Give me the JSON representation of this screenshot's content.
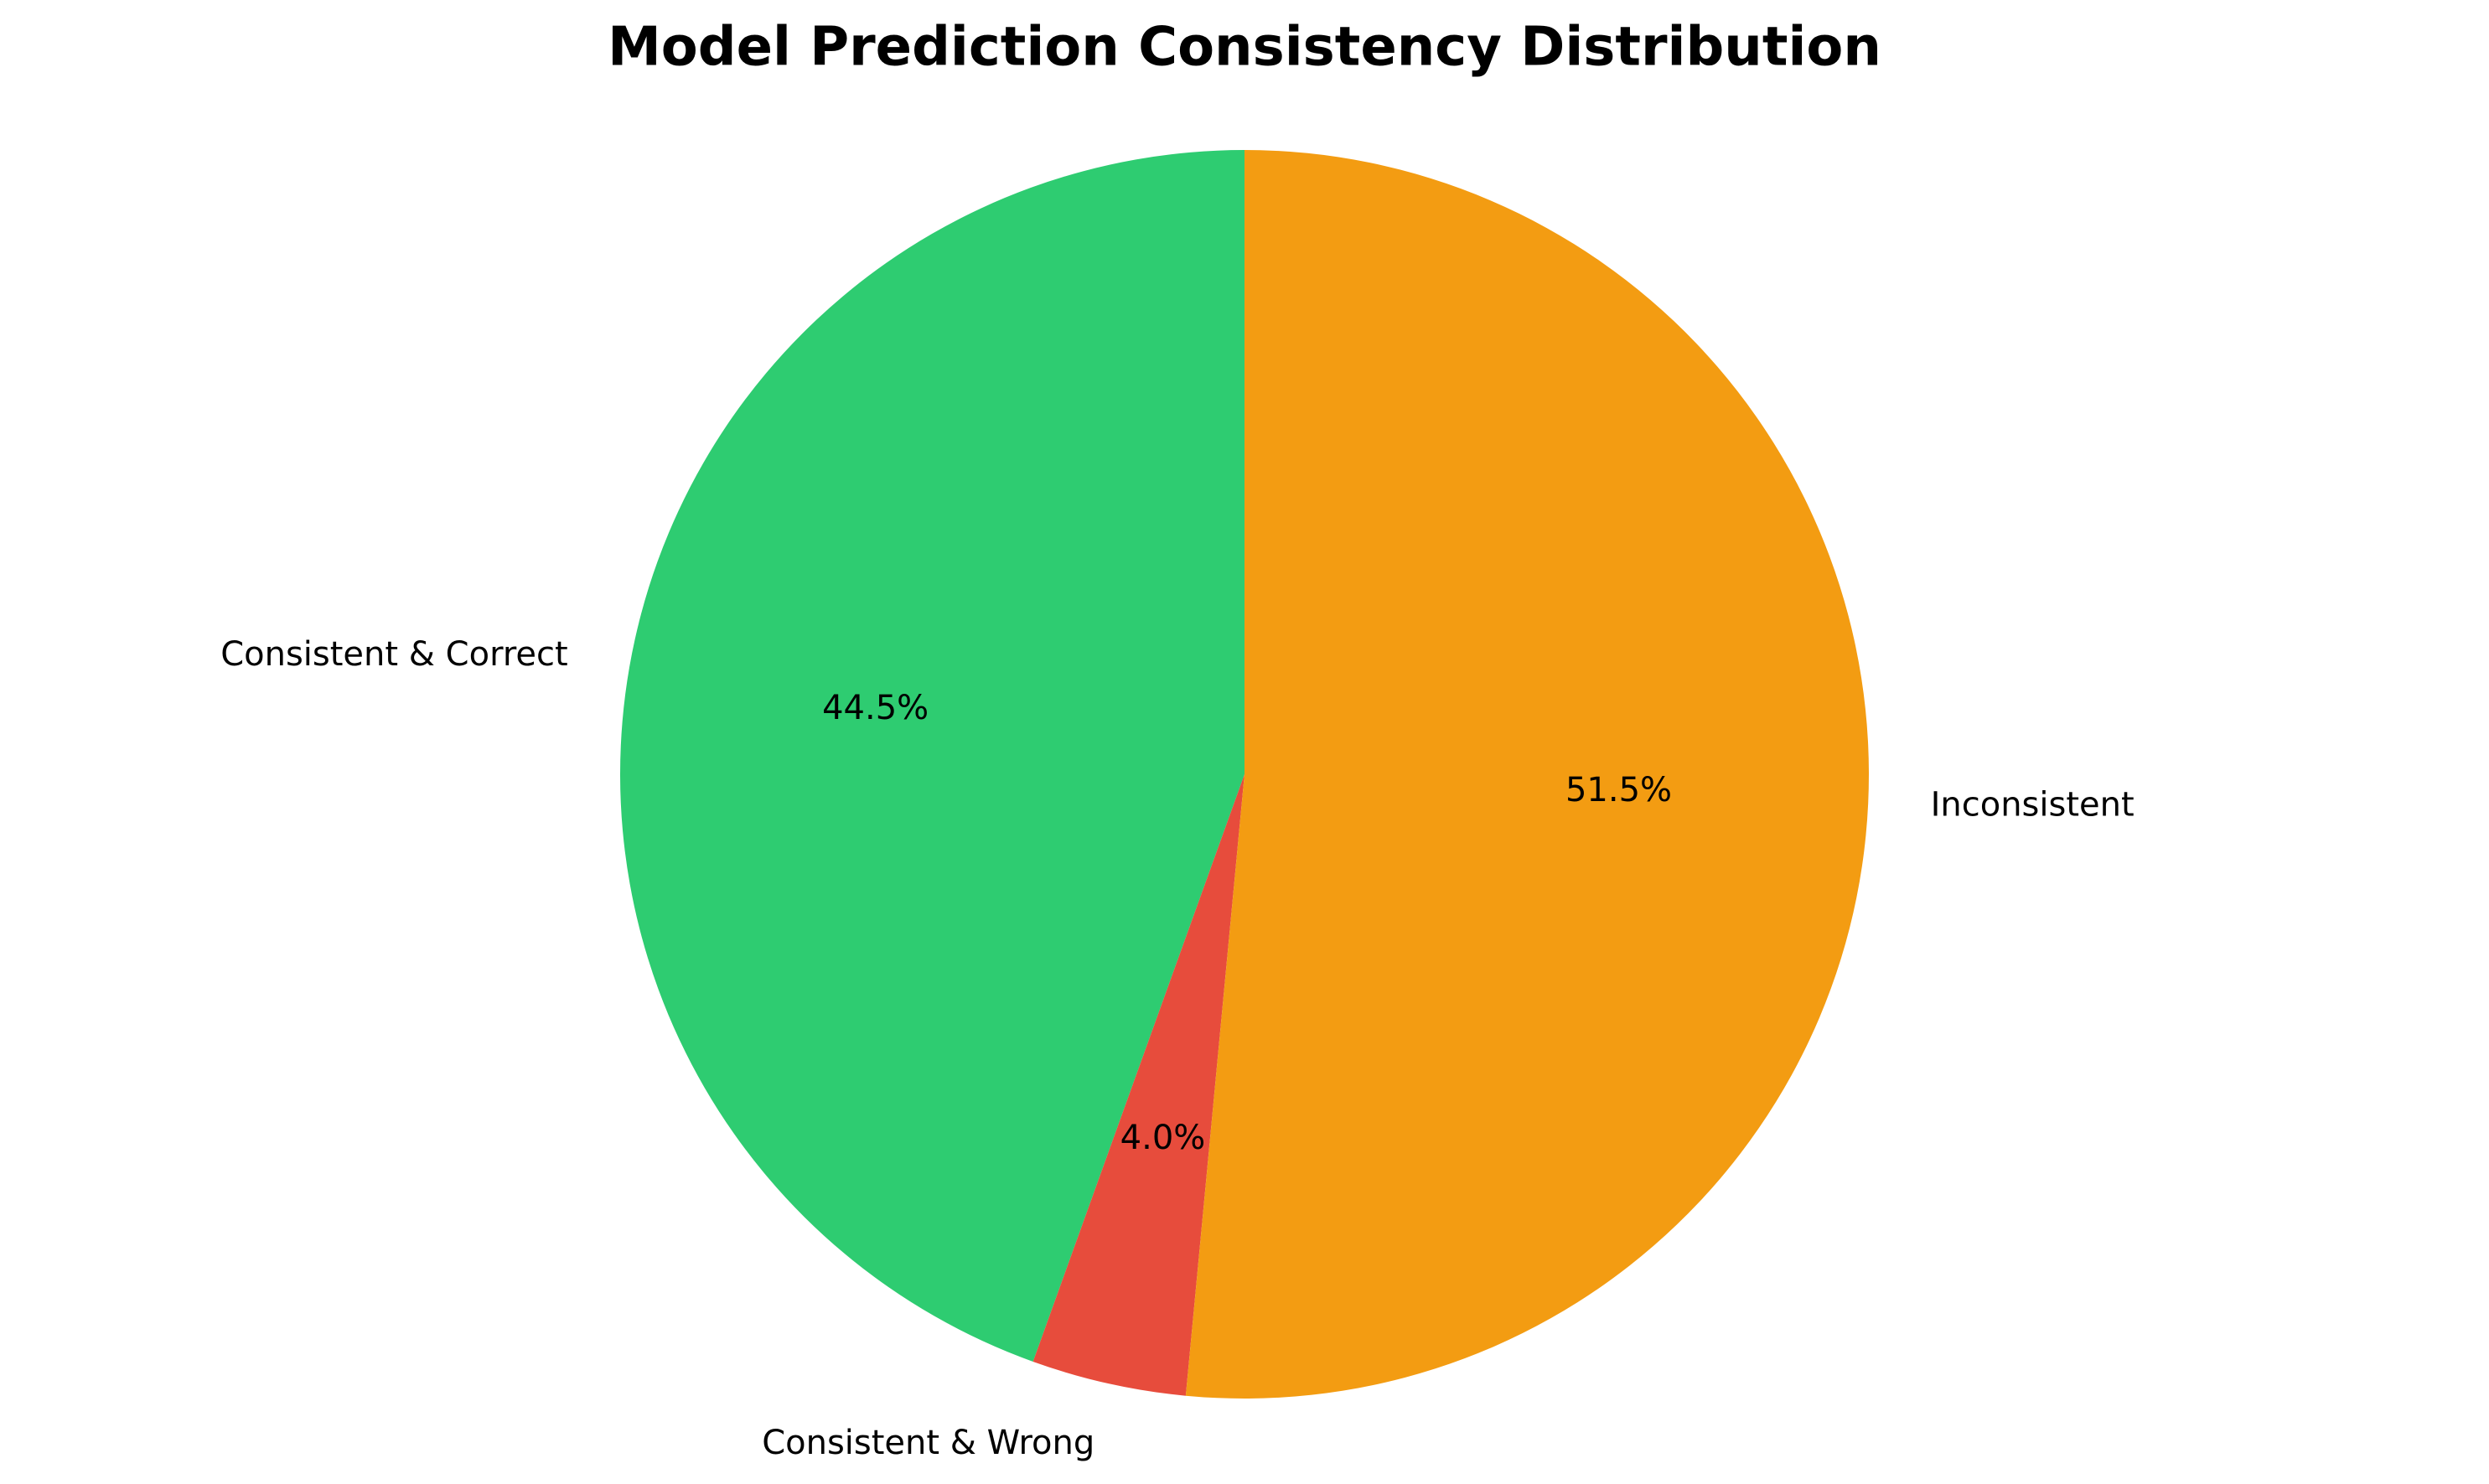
{
  "chart_data": {
    "type": "pie",
    "title": "Model Prediction Consistency Distribution",
    "start_angle_deg": 90,
    "direction": "counterclockwise",
    "categories": [
      "Consistent & Correct",
      "Consistent & Wrong",
      "Inconsistent"
    ],
    "values": [
      44.5,
      4.0,
      51.5
    ],
    "value_labels": [
      "44.5%",
      "4.0%",
      "51.5%"
    ],
    "colors": [
      "#2ecc71",
      "#e74c3c",
      "#f39c12"
    ],
    "legend": "none"
  }
}
